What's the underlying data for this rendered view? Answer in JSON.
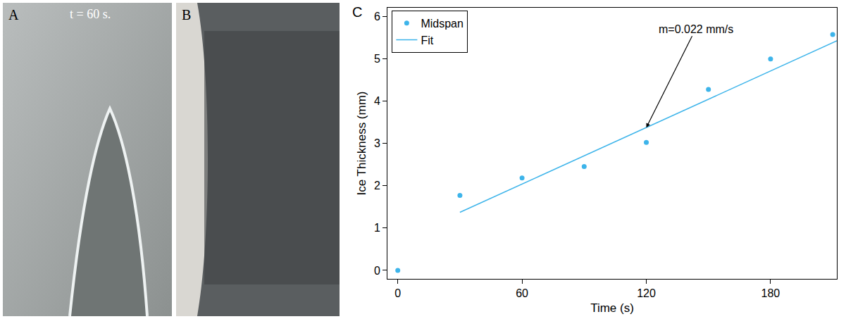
{
  "panels": [
    {
      "label": "A",
      "text": "t = 60 s."
    },
    {
      "label": "B"
    }
  ],
  "chart_data": {
    "type": "scatter",
    "panel_label": "C",
    "x_label": "Time (s)",
    "y_label": "Ice Thickness (mm)",
    "annotations": [
      {
        "text": "m=0.022 mm/s",
        "x": 120,
        "y": 3.37
      }
    ],
    "series": [
      {
        "name": "Midspan",
        "type": "scatter",
        "marker": "circle",
        "color": "#3db4ea",
        "x": [
          0,
          30,
          60,
          90,
          120,
          150,
          180,
          210
        ],
        "values": [
          0,
          1.77,
          2.18,
          2.45,
          3.02,
          4.27,
          4.99,
          5.57
        ]
      },
      {
        "name": "Fit",
        "type": "line",
        "line_style": "solid",
        "color": "#3db4ea",
        "x": [
          30,
          212
        ],
        "values": [
          1.37,
          5.42
        ]
      }
    ],
    "xlim": [
      -5,
      212
    ],
    "ylim": [
      -0.2,
      6.2
    ],
    "xticks": [
      0,
      60,
      120,
      180
    ],
    "yticks": [
      0,
      1,
      2,
      3,
      4,
      5,
      6
    ],
    "legend": "upper left",
    "grid": false
  }
}
